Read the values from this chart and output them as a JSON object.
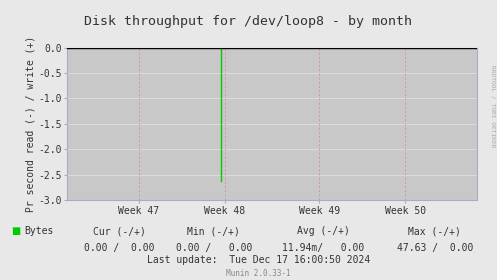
{
  "title": "Disk throughput for /dev/loop8 - by month",
  "ylabel": "Pr second read (-) / write (+)",
  "ylim": [
    -3.0,
    0.0
  ],
  "yticks": [
    0.0,
    -0.5,
    -1.0,
    -1.5,
    -2.0,
    -2.5,
    -3.0
  ],
  "ytick_labels": [
    "0.0",
    "-0.5",
    "-1.0",
    "-1.5",
    "-2.0",
    "-2.5",
    "-3.0"
  ],
  "xtick_labels": [
    "Week 47",
    "Week 48",
    "Week 49",
    "Week 50"
  ],
  "xtick_positions": [
    0.175,
    0.385,
    0.615,
    0.825
  ],
  "bg_color": "#e8e8e8",
  "plot_bg_color": "#c8c8c8",
  "grid_color_h": "#e0e0e0",
  "grid_color_v": "#e08080",
  "border_color": "#aaaacc",
  "title_color": "#333333",
  "green_line_x": 0.375,
  "green_line_bottom": -2.63,
  "green_line_color": "#00cc00",
  "top_line_color": "#000000",
  "legend_label": "Bytes",
  "legend_color": "#00cc00",
  "cur_label": "Cur (-/+)",
  "min_label": "Min (-/+)",
  "avg_label": "Avg (-/+)",
  "max_label": "Max (-/+)",
  "cur_val": "0.00 /  0.00",
  "min_val": "0.00 /   0.00",
  "avg_val": "11.94m/   0.00",
  "max_val": "47.63 /  0.00",
  "last_update": "Last update:  Tue Dec 17 16:00:50 2024",
  "munin_version": "Munin 2.0.33-1",
  "watermark": "RRDTOOL / TOBI OETIKER",
  "font_size": 7.0,
  "title_font_size": 9.5
}
